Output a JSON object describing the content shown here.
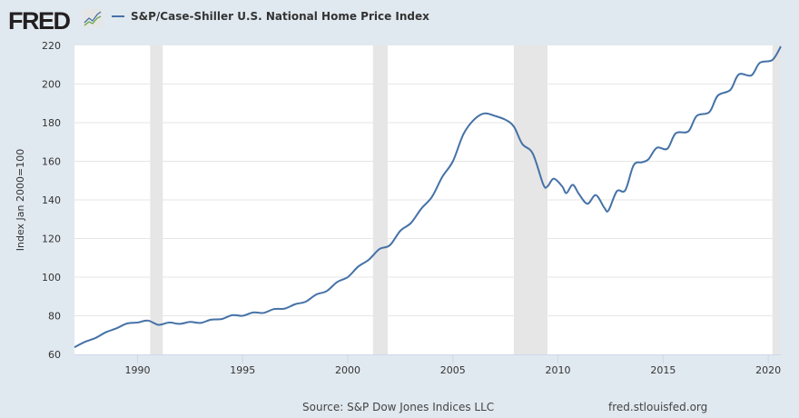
{
  "logo": "FRED",
  "chart_data": {
    "type": "line",
    "title": "S&P/Case-Shiller U.S. National Home Price Index",
    "ylabel": "Index Jan 2000=100",
    "xlabel": "",
    "xlim": [
      1987.0,
      2020.6
    ],
    "ylim": [
      60,
      220
    ],
    "yticks": [
      60,
      80,
      100,
      120,
      140,
      160,
      180,
      200,
      220
    ],
    "xticks": [
      1990,
      1995,
      2000,
      2005,
      2010,
      2015,
      2020
    ],
    "grid": true,
    "legend": "top-left",
    "color": "#4572a7",
    "recessions": [
      [
        1990.6,
        1991.2
      ],
      [
        2001.2,
        2001.9
      ],
      [
        2007.9,
        2009.5
      ],
      [
        2020.2,
        2020.6
      ]
    ],
    "series": [
      {
        "name": "S&P/Case-Shiller U.S. National Home Price Index",
        "x": [
          1987.0,
          1987.5,
          1988,
          1988.5,
          1989,
          1989.5,
          1990,
          1990.5,
          1991,
          1991.5,
          1992,
          1992.5,
          1993,
          1993.5,
          1994,
          1994.5,
          1995,
          1995.5,
          1996,
          1996.5,
          1997,
          1997.5,
          1998,
          1998.5,
          1999,
          1999.5,
          2000,
          2000.5,
          2001,
          2001.5,
          2002,
          2002.5,
          2003,
          2003.5,
          2004,
          2004.5,
          2005,
          2005.5,
          2006,
          2006.5,
          2007,
          2007.5,
          2007.9,
          2008.3,
          2008.8,
          2009.3,
          2009.5,
          2009.8,
          2010.2,
          2010.4,
          2010.7,
          2011,
          2011.4,
          2011.8,
          2012.2,
          2012.4,
          2012.8,
          2013.2,
          2013.6,
          2014.0,
          2014.3,
          2014.7,
          2015.2,
          2015.6,
          2016.2,
          2016.6,
          2017.2,
          2017.6,
          2018.2,
          2018.6,
          2019.2,
          2019.6,
          2020.2,
          2020.6
        ],
        "values": [
          63.7,
          66.5,
          68.5,
          71.5,
          73.5,
          76,
          76.5,
          77.5,
          75.3,
          76.5,
          75.8,
          76.8,
          76.3,
          78,
          78.3,
          80.3,
          80,
          81.7,
          81.5,
          83.5,
          83.7,
          86,
          87.3,
          91,
          92.8,
          97.5,
          100,
          105.5,
          109,
          114.5,
          116.5,
          124,
          128,
          135.5,
          141.5,
          152,
          160,
          174,
          181.5,
          184.8,
          183.5,
          181.5,
          178,
          169,
          164,
          148,
          147,
          151,
          147,
          143.5,
          147.8,
          143,
          138,
          142.5,
          136,
          134.5,
          144.5,
          145,
          158,
          159.5,
          161,
          167,
          166.5,
          174.5,
          175.5,
          183.5,
          185.5,
          194,
          197,
          205,
          204.5,
          211,
          212.5,
          219.5
        ]
      }
    ]
  },
  "footer": {
    "source": "Source: S&P Dow Jones Indices LLC",
    "site": "fred.stlouisfed.org"
  }
}
